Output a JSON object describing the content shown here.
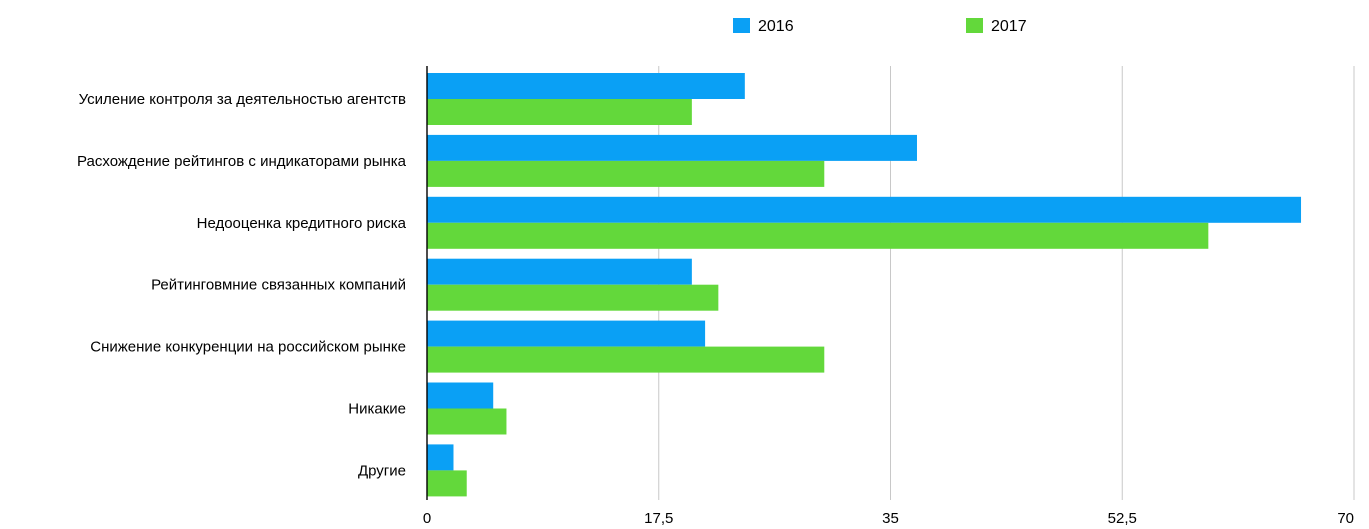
{
  "chart_data": {
    "type": "bar",
    "orientation": "horizontal",
    "categories": [
      "Усиление контроля за деятельностью агентств",
      "Расхождение рейтингов с индикаторами рынка",
      "Недооценка кредитного риска",
      "Рейтинговмние связанных компаний",
      "Снижение конкуренции на российском рынке",
      "Никакие",
      "Другие"
    ],
    "series": [
      {
        "name": "2016",
        "color": "#0aa0f5",
        "values": [
          24,
          37,
          66,
          20,
          21,
          5,
          2
        ]
      },
      {
        "name": "2017",
        "color": "#63d83b",
        "values": [
          20,
          30,
          59,
          22,
          30,
          6,
          3
        ]
      }
    ],
    "x_ticks": [
      "0",
      "17,5",
      "35",
      "52,5",
      "70"
    ],
    "xlim": [
      0,
      70
    ],
    "grid": true,
    "legend_position": "top-center",
    "title": "",
    "xlabel": "",
    "ylabel": ""
  }
}
